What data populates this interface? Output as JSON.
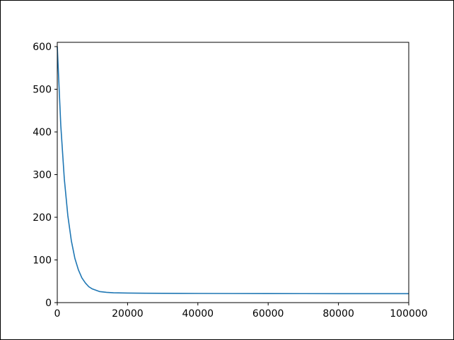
{
  "chart_data": {
    "type": "line",
    "title": "",
    "xlabel": "",
    "ylabel": "",
    "xlim": [
      0,
      100000
    ],
    "ylim": [
      0,
      610
    ],
    "xticks": [
      0,
      20000,
      40000,
      60000,
      80000,
      100000
    ],
    "yticks": [
      0,
      100,
      200,
      300,
      400,
      500,
      600
    ],
    "xtick_labels": [
      "0",
      "20000",
      "40000",
      "60000",
      "80000",
      "100000"
    ],
    "ytick_labels": [
      "0",
      "100",
      "200",
      "300",
      "400",
      "500",
      "600"
    ],
    "grid": false,
    "series": [
      {
        "color": "#1f77b4",
        "x": [
          0,
          1000,
          2000,
          3000,
          4000,
          5000,
          6000,
          7000,
          8000,
          9000,
          10000,
          12000,
          14000,
          16000,
          20000,
          25000,
          30000,
          40000,
          50000,
          60000,
          70000,
          80000,
          90000,
          100000
        ],
        "y": [
          600,
          415,
          290,
          204,
          145,
          104,
          77,
          58,
          46,
          37,
          32,
          26,
          24,
          23,
          22.5,
          22,
          21.8,
          21.5,
          21.3,
          21.2,
          21.1,
          21,
          21,
          21
        ]
      }
    ]
  }
}
